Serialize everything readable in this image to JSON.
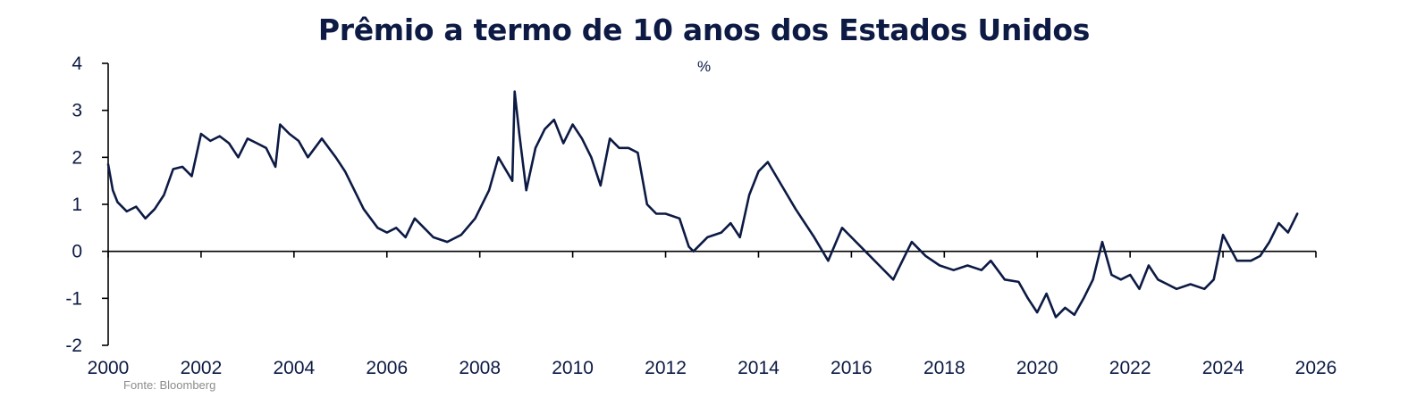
{
  "chart_data": {
    "type": "line",
    "title": "Prêmio a termo de 10 anos dos Estados Unidos",
    "subtitle": "%",
    "source": "Fonte: Bloomberg",
    "xlabel": "",
    "ylabel": "",
    "xlim": [
      2000,
      2026
    ],
    "ylim": [
      -2,
      4
    ],
    "x_ticks": [
      "2000",
      "2002",
      "2004",
      "2006",
      "2008",
      "2010",
      "2012",
      "2014",
      "2016",
      "2018",
      "2020",
      "2022",
      "2024",
      "2026"
    ],
    "y_ticks": [
      "4",
      "3",
      "2",
      "1",
      "0",
      "-1",
      "-2"
    ],
    "grid": false,
    "legend": "none",
    "colors": {
      "line": "#0c1a44",
      "axis": "#000000",
      "text": "#0c1a44"
    },
    "series": [
      {
        "x": [
          2000.0,
          2000.1,
          2000.2,
          2000.4,
          2000.6,
          2000.8,
          2001.0,
          2001.2,
          2001.4,
          2001.6,
          2001.8,
          2002.0,
          2002.2,
          2002.4,
          2002.6,
          2002.8,
          2003.0,
          2003.2,
          2003.4,
          2003.6,
          2003.7,
          2003.9,
          2004.1,
          2004.3,
          2004.6,
          2004.9,
          2005.1,
          2005.3,
          2005.5,
          2005.8,
          2006.0,
          2006.2,
          2006.4,
          2006.6,
          2006.8,
          2007.0,
          2007.3,
          2007.6,
          2007.9,
          2008.2,
          2008.4,
          2008.7,
          2008.75,
          2008.85,
          2009.0,
          2009.2,
          2009.4,
          2009.6,
          2009.8,
          2010.0,
          2010.2,
          2010.4,
          2010.6,
          2010.8,
          2011.0,
          2011.2,
          2011.4,
          2011.6,
          2011.8,
          2012.0,
          2012.3,
          2012.5,
          2012.6,
          2012.9,
          2013.2,
          2013.4,
          2013.6,
          2013.8,
          2014.0,
          2014.2,
          2014.5,
          2014.8,
          2015.0,
          2015.2,
          2015.5,
          2015.8,
          2016.0,
          2016.3,
          2016.6,
          2016.9,
          2017.0,
          2017.3,
          2017.6,
          2017.9,
          2018.2,
          2018.5,
          2018.8,
          2019.0,
          2019.3,
          2019.6,
          2019.8,
          2020.0,
          2020.2,
          2020.4,
          2020.6,
          2020.8,
          2021.0,
          2021.2,
          2021.4,
          2021.6,
          2021.8,
          2022.0,
          2022.2,
          2022.4,
          2022.6,
          2022.8,
          2023.0,
          2023.3,
          2023.6,
          2023.8,
          2024.0,
          2024.3,
          2024.6,
          2024.8,
          2025.0,
          2025.2,
          2025.4,
          2025.6
        ],
        "y": [
          1.85,
          1.3,
          1.05,
          0.85,
          0.95,
          0.7,
          0.9,
          1.2,
          1.75,
          1.8,
          1.6,
          2.5,
          2.35,
          2.45,
          2.3,
          2.0,
          2.4,
          2.3,
          2.2,
          1.8,
          2.7,
          2.5,
          2.35,
          2.0,
          2.4,
          2.0,
          1.7,
          1.3,
          0.9,
          0.5,
          0.4,
          0.5,
          0.3,
          0.7,
          0.5,
          0.3,
          0.2,
          0.35,
          0.7,
          1.3,
          2.0,
          1.5,
          3.4,
          2.5,
          1.3,
          2.2,
          2.6,
          2.8,
          2.3,
          2.7,
          2.4,
          2.0,
          1.4,
          2.4,
          2.2,
          2.2,
          2.1,
          1.0,
          0.8,
          0.8,
          0.7,
          0.1,
          0.0,
          0.3,
          0.4,
          0.6,
          0.3,
          1.2,
          1.7,
          1.9,
          1.4,
          0.9,
          0.6,
          0.3,
          -0.2,
          0.5,
          0.3,
          0.0,
          -0.3,
          -0.6,
          -0.4,
          0.2,
          -0.1,
          -0.3,
          -0.4,
          -0.3,
          -0.4,
          -0.2,
          -0.6,
          -0.65,
          -1.0,
          -1.3,
          -0.9,
          -1.4,
          -1.2,
          -1.35,
          -1.0,
          -0.6,
          0.2,
          -0.5,
          -0.6,
          -0.5,
          -0.8,
          -0.3,
          -0.6,
          -0.7,
          -0.8,
          -0.7,
          -0.8,
          -0.6,
          0.35,
          -0.2,
          -0.2,
          -0.1,
          0.2,
          0.6,
          0.4,
          0.8
        ]
      }
    ]
  }
}
